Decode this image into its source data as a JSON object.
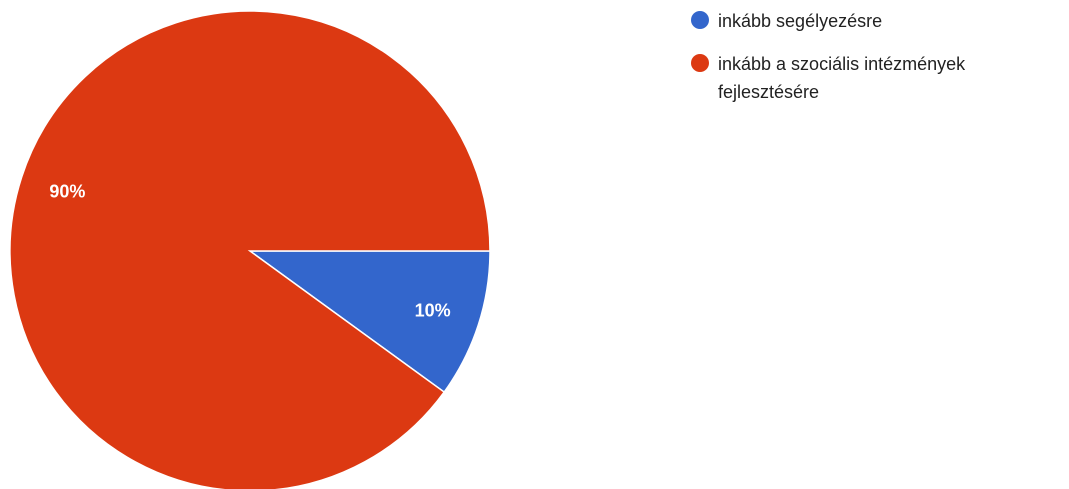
{
  "chart_data": {
    "type": "pie",
    "title": "",
    "slices": [
      {
        "label": "inkább segélyezésre",
        "value": 10,
        "display": "10%",
        "color": "#3366cc"
      },
      {
        "label": "inkább a szociális intézmények fejlesztésére",
        "value": 90,
        "display": "90%",
        "color": "#dc3912"
      }
    ],
    "legend_position": "right"
  }
}
